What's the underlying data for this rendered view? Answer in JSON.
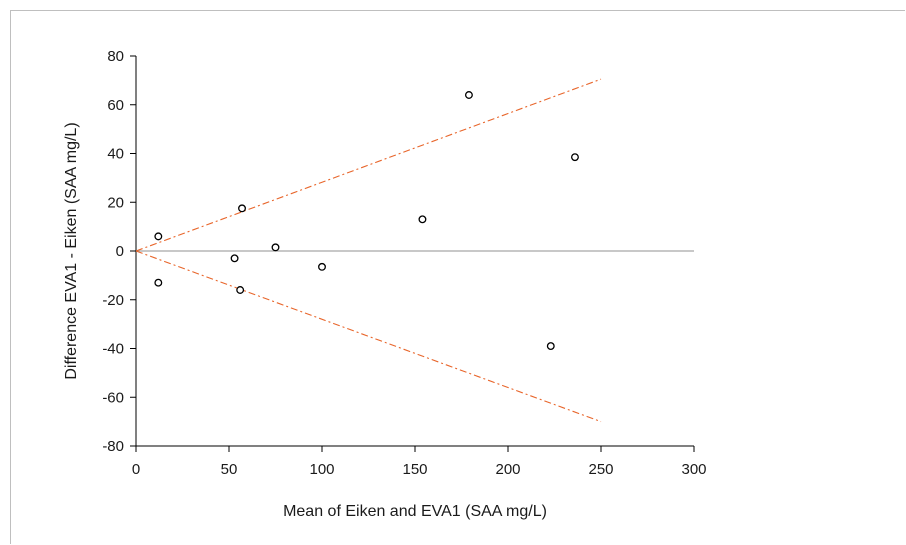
{
  "chart_data": {
    "type": "scatter",
    "title": "",
    "xlabel": "Mean of Eiken and EVA1 (SAA mg/L)",
    "ylabel": "Difference EVA1 - Eiken (SAA mg/L)",
    "xlim": [
      0,
      300
    ],
    "ylim": [
      -80,
      80
    ],
    "xticks": [
      0,
      50,
      100,
      150,
      200,
      250,
      300
    ],
    "yticks": [
      80,
      60,
      40,
      20,
      0,
      -20,
      -40,
      -60,
      -80
    ],
    "grid": false,
    "points": [
      {
        "x": 12,
        "y": 6
      },
      {
        "x": 12,
        "y": -13
      },
      {
        "x": 53,
        "y": -3
      },
      {
        "x": 56,
        "y": -16
      },
      {
        "x": 57,
        "y": 17.5
      },
      {
        "x": 75,
        "y": 1.5
      },
      {
        "x": 100,
        "y": -6.5
      },
      {
        "x": 154,
        "y": 13
      },
      {
        "x": 179,
        "y": 64
      },
      {
        "x": 223,
        "y": -39
      },
      {
        "x": 236,
        "y": 38.5
      }
    ],
    "reference_lines": [
      {
        "kind": "zero",
        "color": "#a6a6a6",
        "style": "solid",
        "x": [
          0,
          300
        ],
        "y": [
          0,
          0
        ]
      },
      {
        "kind": "upper-limit",
        "color": "#e8652a",
        "style": "dash-dot",
        "x": [
          0,
          250
        ],
        "y": [
          0,
          70.5
        ]
      },
      {
        "kind": "lower-limit",
        "color": "#e8652a",
        "style": "dash-dot",
        "x": [
          0,
          250
        ],
        "y": [
          0,
          -70
        ]
      }
    ]
  }
}
